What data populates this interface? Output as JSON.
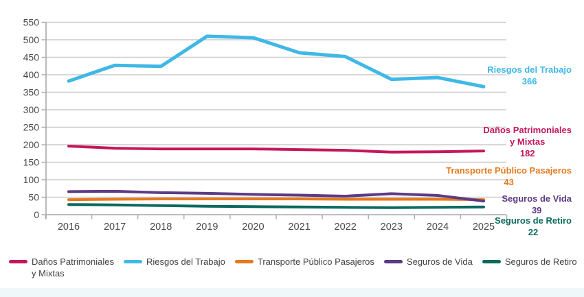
{
  "chart_data": {
    "type": "line",
    "title": "",
    "x": [
      "2016",
      "2017",
      "2018",
      "2019",
      "2020",
      "2021",
      "2022",
      "2023",
      "2024",
      "2025"
    ],
    "ylim": [
      0,
      550
    ],
    "ytick_step": 50,
    "grid": true,
    "legend_position": "bottom",
    "series": [
      {
        "name": "Daños Patrimoniales y Mixtas",
        "color": "#C4175C",
        "values": [
          196,
          190,
          188,
          188,
          188,
          186,
          184,
          179,
          180,
          182
        ],
        "legend_line1": "Daños Patrimoniales",
        "legend_line2": "y Mixtas",
        "annotation": {
          "line1": "Daños Patrimoniales",
          "line2": "y Mixtas",
          "value": "182"
        }
      },
      {
        "name": "Riesgos del Trabajo",
        "color": "#3FB8E6",
        "values": [
          382,
          427,
          424,
          510,
          506,
          463,
          452,
          387,
          392,
          366
        ],
        "legend_line1": "Riesgos del Trabajo",
        "legend_line2": "",
        "annotation": {
          "line1": "Riesgos del Trabajo",
          "line2": "",
          "value": "366"
        }
      },
      {
        "name": "Transporte Público Pasajeros",
        "color": "#E5791E",
        "values": [
          43,
          44,
          45,
          45,
          45,
          45,
          44,
          44,
          44,
          43
        ],
        "legend_line1": "Transporte Público Pasajeros",
        "legend_line2": "",
        "annotation": {
          "line1": "Transporte Público Pasajeros",
          "line2": "",
          "value": "43"
        }
      },
      {
        "name": "Seguros de Vida",
        "color": "#5D3A85",
        "values": [
          66,
          67,
          63,
          61,
          58,
          56,
          53,
          60,
          55,
          39
        ],
        "legend_line1": "Seguros de Vida",
        "legend_line2": "",
        "annotation": {
          "line1": "Seguros de Vida",
          "line2": "",
          "value": "39"
        }
      },
      {
        "name": "Seguros de Retiro",
        "color": "#0B6A5D",
        "values": [
          29,
          28,
          26,
          24,
          23,
          22,
          21,
          20,
          21,
          22
        ],
        "legend_line1": "Seguros de Retiro",
        "legend_line2": "",
        "annotation": {
          "line1": "Seguros de Retiro",
          "line2": "",
          "value": "22"
        }
      }
    ],
    "axis_colors": {
      "gridline": "#cccccc",
      "axis": "#a9a9a9",
      "tick_label": "#4a4a4a"
    }
  }
}
